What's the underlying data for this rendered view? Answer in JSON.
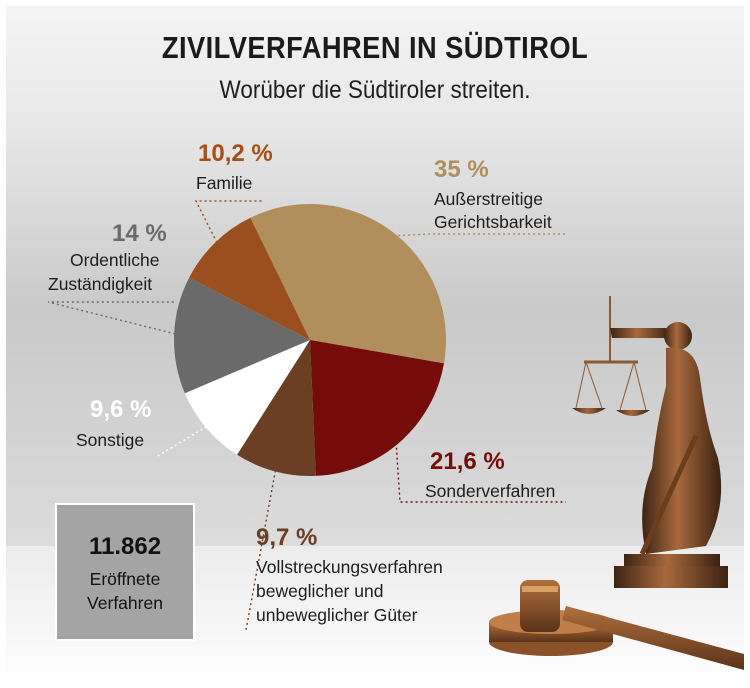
{
  "title": "ZIVILVERFAHREN IN SÜDTIROL",
  "subtitle": "Worüber die Südtiroler streiten.",
  "total": {
    "value": "11.862",
    "label_line1": "Eröffnete",
    "label_line2": "Verfahren"
  },
  "colors": {
    "aussergerichtlich": "#b08f5c",
    "sonder": "#760c0a",
    "vollstreckung": "#6b3f23",
    "sonstige": "#ffffff",
    "ordentlich": "#6a6a6a",
    "familie": "#9c4f1e"
  },
  "chart_data": {
    "type": "pie",
    "title": "ZIVILVERFAHREN IN SÜDTIROL",
    "slices": [
      {
        "key": "aussergerichtlich",
        "pct_label": "35 %",
        "value": 35.0,
        "label_line1": "Außerstreitige",
        "label_line2": "Gerichtsbarkeit",
        "label_line3": ""
      },
      {
        "key": "sonder",
        "pct_label": "21,6 %",
        "value": 21.6,
        "label_line1": "Sonderverfahren",
        "label_line2": "",
        "label_line3": ""
      },
      {
        "key": "vollstreckung",
        "pct_label": "9,7 %",
        "value": 9.7,
        "label_line1": "Vollstreckungsverfahren",
        "label_line2": "beweglicher und",
        "label_line3": "unbeweglicher Güter"
      },
      {
        "key": "sonstige",
        "pct_label": "9,6 %",
        "value": 9.6,
        "label_line1": "Sonstige",
        "label_line2": "",
        "label_line3": ""
      },
      {
        "key": "ordentlich",
        "pct_label": "14 %",
        "value": 14.0,
        "label_line1": "Ordentliche",
        "label_line2": "Zuständigkeit",
        "label_line3": ""
      },
      {
        "key": "familie",
        "pct_label": "10,2 %",
        "value": 10.2,
        "label_line1": "Familie",
        "label_line2": "",
        "label_line3": ""
      }
    ]
  }
}
